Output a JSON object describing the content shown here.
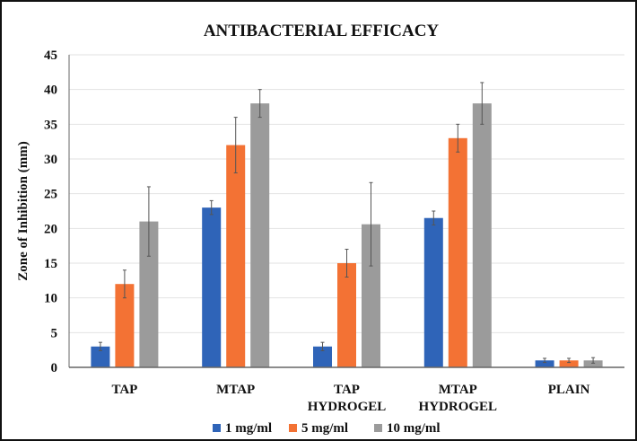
{
  "chart_data": {
    "type": "bar",
    "title": "ANTIBACTERIAL EFFICACY",
    "xlabel": "",
    "ylabel": "Zone of Inhibition (mm)",
    "ylim": [
      0,
      45
    ],
    "yticks": [
      0,
      5,
      10,
      15,
      20,
      25,
      30,
      35,
      40,
      45
    ],
    "grid": true,
    "legend_position": "bottom",
    "categories": [
      [
        "TAP"
      ],
      [
        "MTAP"
      ],
      [
        "TAP",
        "HYDROGEL"
      ],
      [
        "MTAP",
        "HYDROGEL"
      ],
      [
        "PLAIN"
      ]
    ],
    "series": [
      {
        "name": "1 mg/ml",
        "color": "#2F64B8",
        "values": [
          3,
          23,
          3,
          21.5,
          1
        ],
        "errors": [
          0.6,
          1,
          0.6,
          1,
          0.3
        ]
      },
      {
        "name": "5 mg/ml",
        "color": "#F37234",
        "values": [
          12,
          32,
          15,
          33,
          1
        ],
        "errors": [
          2,
          4,
          2,
          2,
          0.3
        ]
      },
      {
        "name": "10 mg/ml",
        "color": "#9B9B9B",
        "values": [
          21,
          38,
          20.6,
          38,
          1
        ],
        "errors": [
          5,
          2,
          6,
          3,
          0.4
        ]
      }
    ]
  }
}
